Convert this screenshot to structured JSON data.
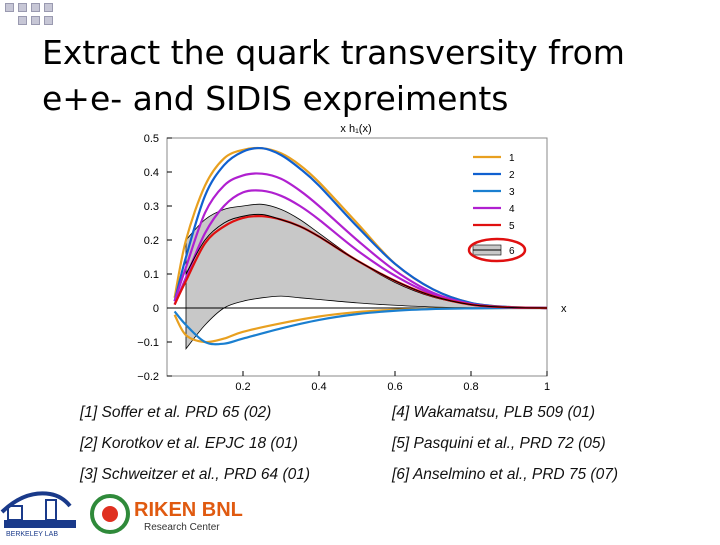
{
  "slide": {
    "title": "Extract the quark transversity from e+e- and SIDIS expreiments"
  },
  "references": [
    {
      "left": "[1] Soffer et al. PRD 65 (02)",
      "right": "[4] Wakamatsu, PLB 509 (01)"
    },
    {
      "left": "[2] Korotkov et al. EPJC 18 (01)",
      "right": "[5] Pasquini et al., PRD 72 (05)"
    },
    {
      "left": "[3] Schweitzer et al., PRD 64 (01)",
      "right": "[6] Anselmino et al., PRD 75 (07)"
    }
  ],
  "logos": {
    "lbl_text": "BERKELEY LAB",
    "riken_name": "RIKEN BNL",
    "riken_sub": "Research Center"
  },
  "colors": {
    "series1": "#e8a020",
    "series2": "#1060d0",
    "series3": "#1a7fd0",
    "series4": "#b020d0",
    "series5": "#e01010",
    "series6_band": "#c8c8c8",
    "highlight": "#e01010"
  },
  "chart_data": {
    "type": "line",
    "ylabel": "x h₁(x)",
    "xlabel": "x",
    "xlim": [
      0,
      1
    ],
    "ylim": [
      -0.2,
      0.5
    ],
    "xticks": [
      "0.2",
      "0.4",
      "0.6",
      "0.8",
      "1"
    ],
    "yticks": [
      "0.5",
      "0.4",
      "0.3",
      "0.2",
      "0.1",
      "0",
      "−0.1",
      "−0.2"
    ],
    "ytick_values": [
      0.5,
      0.4,
      0.3,
      0.2,
      0.1,
      0,
      -0.1,
      -0.2
    ],
    "xtick_values": [
      0.2,
      0.4,
      0.6,
      0.8,
      1.0
    ],
    "legend_position": "top-right",
    "legend_highlighted": "6",
    "series": [
      {
        "name": "1",
        "color": "#e8a020",
        "x": [
          0.02,
          0.05,
          0.1,
          0.15,
          0.2,
          0.25,
          0.3,
          0.35,
          0.4,
          0.5,
          0.6,
          0.7,
          0.8,
          0.9,
          1.0
        ],
        "y": [
          0.03,
          0.2,
          0.36,
          0.44,
          0.465,
          0.47,
          0.455,
          0.42,
          0.37,
          0.25,
          0.13,
          0.055,
          0.015,
          0.003,
          0.0
        ]
      },
      {
        "name": "1",
        "color": "#e8a020",
        "x": [
          0.02,
          0.05,
          0.1,
          0.15,
          0.2,
          0.3,
          0.4,
          0.5,
          0.6,
          0.7,
          0.8,
          0.9,
          1.0
        ],
        "y": [
          -0.02,
          -0.08,
          -0.1,
          -0.09,
          -0.07,
          -0.045,
          -0.025,
          -0.012,
          -0.005,
          -0.002,
          -0.001,
          0.0,
          0.0
        ]
      },
      {
        "name": "2",
        "color": "#1060d0",
        "x": [
          0.02,
          0.05,
          0.1,
          0.15,
          0.2,
          0.25,
          0.3,
          0.35,
          0.4,
          0.5,
          0.6,
          0.7,
          0.8,
          0.9,
          1.0
        ],
        "y": [
          0.02,
          0.15,
          0.33,
          0.42,
          0.46,
          0.47,
          0.45,
          0.41,
          0.36,
          0.24,
          0.13,
          0.055,
          0.015,
          0.003,
          0.0
        ]
      },
      {
        "name": "3",
        "color": "#1a7fd0",
        "x": [
          0.02,
          0.05,
          0.1,
          0.15,
          0.2,
          0.3,
          0.4,
          0.5,
          0.6,
          0.7,
          0.8,
          0.9,
          1.0
        ],
        "y": [
          -0.01,
          -0.05,
          -0.1,
          -0.105,
          -0.09,
          -0.06,
          -0.035,
          -0.018,
          -0.008,
          -0.003,
          -0.001,
          0.0,
          0.0
        ]
      },
      {
        "name": "4",
        "color": "#b020d0",
        "x": [
          0.02,
          0.05,
          0.1,
          0.15,
          0.2,
          0.25,
          0.3,
          0.35,
          0.4,
          0.5,
          0.6,
          0.7,
          0.8,
          0.9,
          1.0
        ],
        "y": [
          0.02,
          0.12,
          0.28,
          0.36,
          0.39,
          0.395,
          0.38,
          0.345,
          0.3,
          0.2,
          0.11,
          0.045,
          0.012,
          0.002,
          0.0
        ]
      },
      {
        "name": "4",
        "color": "#b020d0",
        "x": [
          0.02,
          0.05,
          0.1,
          0.15,
          0.2,
          0.25,
          0.3,
          0.35,
          0.4,
          0.5,
          0.6,
          0.7,
          0.8,
          0.9,
          1.0
        ],
        "y": [
          0.01,
          0.09,
          0.22,
          0.3,
          0.34,
          0.345,
          0.33,
          0.3,
          0.26,
          0.17,
          0.095,
          0.04,
          0.01,
          0.002,
          0.0
        ]
      },
      {
        "name": "5",
        "color": "#e01010",
        "x": [
          0.02,
          0.05,
          0.1,
          0.15,
          0.2,
          0.25,
          0.3,
          0.35,
          0.4,
          0.5,
          0.6,
          0.7,
          0.8,
          0.9,
          1.0
        ],
        "y": [
          0.01,
          0.08,
          0.19,
          0.24,
          0.265,
          0.27,
          0.26,
          0.24,
          0.21,
          0.14,
          0.08,
          0.035,
          0.01,
          0.002,
          0.0
        ]
      },
      {
        "name": "6",
        "color": "#000000",
        "x": [
          0.05,
          0.1,
          0.15,
          0.2,
          0.25,
          0.3,
          0.35,
          0.4,
          0.5,
          0.6,
          0.7,
          0.8,
          0.9,
          1.0
        ],
        "y": [
          0.1,
          0.2,
          0.25,
          0.27,
          0.275,
          0.26,
          0.24,
          0.21,
          0.14,
          0.08,
          0.035,
          0.01,
          0.002,
          0.0
        ]
      }
    ],
    "band": {
      "name": "6",
      "x": [
        0.05,
        0.1,
        0.15,
        0.2,
        0.25,
        0.3,
        0.35,
        0.4,
        0.5,
        0.6,
        0.7,
        0.8,
        0.9,
        1.0
      ],
      "upper": [
        0.2,
        0.26,
        0.29,
        0.3,
        0.305,
        0.29,
        0.26,
        0.22,
        0.14,
        0.075,
        0.032,
        0.01,
        0.002,
        0.0
      ],
      "lower": [
        -0.12,
        -0.05,
        0.0,
        0.02,
        0.03,
        0.035,
        0.03,
        0.025,
        0.015,
        0.008,
        0.003,
        0.001,
        0.0,
        0.0
      ]
    }
  }
}
